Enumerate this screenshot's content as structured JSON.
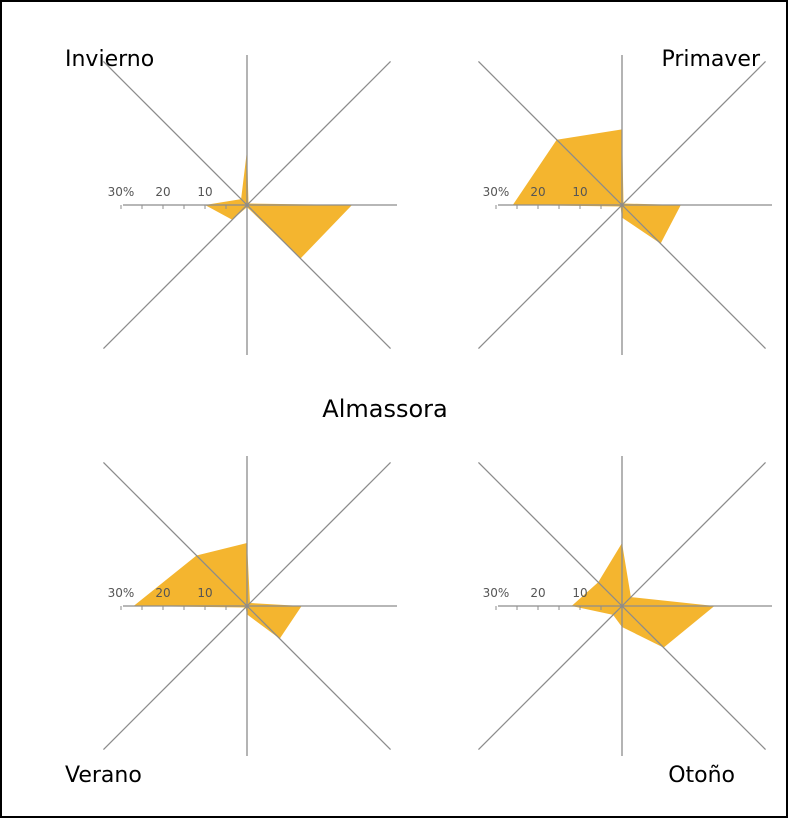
{
  "colors": {
    "fill": "#F4B52F",
    "axis": "#8c8c8c",
    "border": "#000000",
    "text": "#000000"
  },
  "center_label": "Almassora",
  "axis_ticks": [
    "30%",
    "20",
    "10"
  ],
  "chart_data": [
    {
      "type": "radar",
      "title": "Invierno",
      "directions": [
        "E",
        "NE",
        "N",
        "NW",
        "W",
        "SW",
        "S",
        "SE"
      ],
      "values": [
        25,
        0.5,
        13,
        2,
        10,
        5,
        0.5,
        18
      ],
      "rlim": [
        0,
        30
      ],
      "tick_labels": [
        "30%",
        "20",
        "10"
      ]
    },
    {
      "type": "radar",
      "title": "Primaver",
      "directions": [
        "E",
        "NE",
        "N",
        "NW",
        "W",
        "SW",
        "S",
        "SE"
      ],
      "values": [
        14,
        0.5,
        18,
        22,
        26,
        0.5,
        3,
        13
      ],
      "rlim": [
        0,
        30
      ],
      "tick_labels": [
        "30%",
        "20",
        "10"
      ]
    },
    {
      "type": "radar",
      "title": "Verano",
      "directions": [
        "E",
        "NE",
        "N",
        "NW",
        "W",
        "SW",
        "S",
        "SE"
      ],
      "values": [
        13,
        1,
        15,
        17,
        27,
        0.5,
        2,
        11
      ],
      "rlim": [
        0,
        30
      ],
      "tick_labels": [
        "30%",
        "20",
        "10"
      ]
    },
    {
      "type": "radar",
      "title": "Otoño",
      "directions": [
        "E",
        "NE",
        "N",
        "NW",
        "W",
        "SW",
        "S",
        "SE"
      ],
      "values": [
        22,
        3,
        15,
        8,
        12,
        3,
        5,
        14
      ],
      "rlim": [
        0,
        30
      ],
      "tick_labels": [
        "30%",
        "20",
        "10"
      ]
    }
  ]
}
